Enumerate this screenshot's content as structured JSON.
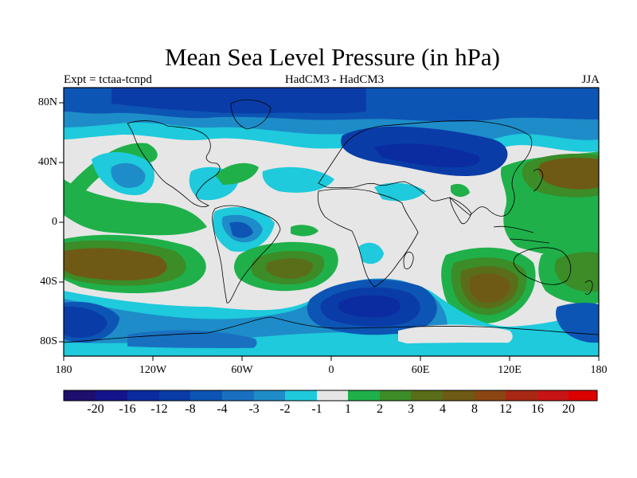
{
  "title": "Mean Sea Level Pressure (in hPa)",
  "subtitle_left": "Expt = tctaa-tcnpd",
  "subtitle_center": "HadCM3 - HadCM3",
  "subtitle_right": "JJA",
  "lat_labels": [
    "80N",
    "40N",
    "0",
    "40S",
    "80S"
  ],
  "lon_labels": [
    "180",
    "120W",
    "60W",
    "0",
    "60E",
    "120E",
    "180"
  ],
  "colorbar": {
    "labels": [
      "-20",
      "-16",
      "-12",
      "-8",
      "-4",
      "-3",
      "-2",
      "-1",
      "1",
      "2",
      "3",
      "4",
      "8",
      "12",
      "16",
      "20"
    ],
    "colors": [
      "#1e0f6e",
      "#14148c",
      "#0a2ca0",
      "#0a3ca8",
      "#0d55b4",
      "#1a70c0",
      "#1e8cc8",
      "#1ecadc",
      "#e6e6e6",
      "#1fb04a",
      "#3c8c28",
      "#5a6e1a",
      "#6e5a14",
      "#8c4614",
      "#a82814",
      "#c81414",
      "#dc0000"
    ]
  },
  "map": {
    "colors": {
      "neutral": "#e6e6e6",
      "lt_cyan": "#1ecadc",
      "cyan_blue": "#1e8cc8",
      "mid_blue": "#1a70c0",
      "blue": "#0d55b4",
      "dark_blue": "#0a3ca8",
      "navy": "#0a2ca0",
      "green": "#1fb04a",
      "dark_green": "#3c8c28",
      "olive": "#5a6e1a",
      "brown": "#6e5a14"
    }
  }
}
